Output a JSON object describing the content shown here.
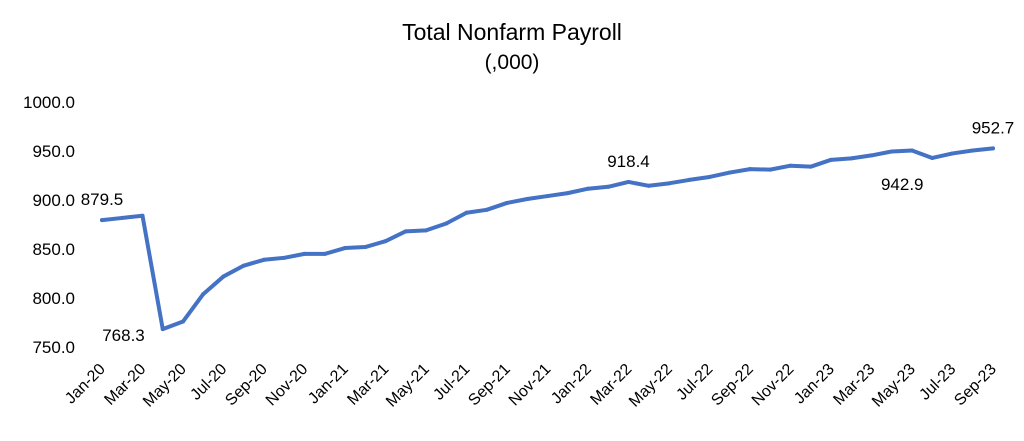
{
  "chart_data": {
    "type": "line",
    "title": "Total Nonfarm Payroll",
    "subtitle": "(,000)",
    "xlabel": "",
    "ylabel": "",
    "ylim": [
      750,
      1000
    ],
    "yticks": [
      "750.0",
      "800.0",
      "850.0",
      "900.0",
      "950.0",
      "1000.0"
    ],
    "grid": false,
    "legend": "none",
    "line_color": "#4472C4",
    "x": [
      "Jan-20",
      "Feb-20",
      "Mar-20",
      "Apr-20",
      "May-20",
      "Jun-20",
      "Jul-20",
      "Aug-20",
      "Sep-20",
      "Oct-20",
      "Nov-20",
      "Dec-20",
      "Jan-21",
      "Feb-21",
      "Mar-21",
      "Apr-21",
      "May-21",
      "Jun-21",
      "Jul-21",
      "Aug-21",
      "Sep-21",
      "Oct-21",
      "Nov-21",
      "Dec-21",
      "Jan-22",
      "Feb-22",
      "Mar-22",
      "Apr-22",
      "May-22",
      "Jun-22",
      "Jul-22",
      "Aug-22",
      "Sep-22",
      "Oct-22",
      "Nov-22",
      "Dec-22",
      "Jan-23",
      "Feb-23",
      "Mar-23",
      "Apr-23",
      "May-23",
      "Jun-23",
      "Jul-23",
      "Aug-23",
      "Sep-23"
    ],
    "xtick_labels": [
      "Jan-20",
      "Mar-20",
      "May-20",
      "Jul-20",
      "Sep-20",
      "Nov-20",
      "Jan-21",
      "Mar-21",
      "May-21",
      "Jul-21",
      "Sep-21",
      "Nov-21",
      "Jan-22",
      "Mar-22",
      "May-22",
      "Jul-22",
      "Sep-22",
      "Nov-22",
      "Jan-23",
      "Mar-23",
      "May-23",
      "Jul-23",
      "Sep-23"
    ],
    "series": [
      {
        "values": [
          879.5,
          881.7,
          883.9,
          768.3,
          776.0,
          804.0,
          822.0,
          833.0,
          839.0,
          841.0,
          845.0,
          845.0,
          851.0,
          852.0,
          858.0,
          868.0,
          869.0,
          876.0,
          887.0,
          890.0,
          897.0,
          901.0,
          904.0,
          907.0,
          911.5,
          913.5,
          918.4,
          914.5,
          917.0,
          920.5,
          923.5,
          928.0,
          931.5,
          931.0,
          935.0,
          934.0,
          941.0,
          942.5,
          945.5,
          949.5,
          950.5,
          942.9,
          947.5,
          950.5,
          952.7
        ]
      }
    ],
    "data_labels": [
      {
        "index": 0,
        "text": "879.5",
        "position": "above"
      },
      {
        "index": 3,
        "text": "768.3",
        "position": "left"
      },
      {
        "index": 26,
        "text": "918.4",
        "position": "above"
      },
      {
        "index": 41,
        "text": "942.9",
        "position": "below"
      },
      {
        "index": 44,
        "text": "952.7",
        "position": "above"
      }
    ]
  }
}
